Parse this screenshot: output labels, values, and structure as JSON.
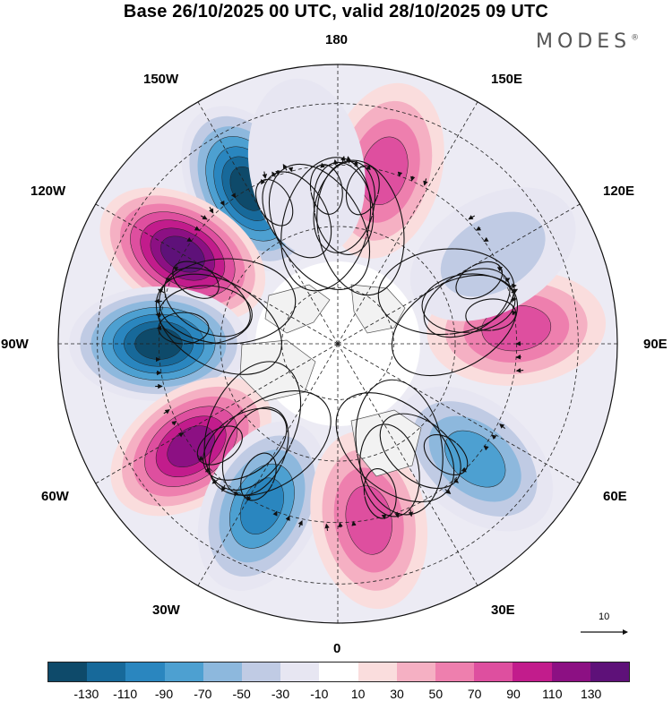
{
  "title": "Base 26/10/2025 00 UTC, valid 28/10/2025 09 UTC",
  "brand": "MODES",
  "brand_mark": "®",
  "longitude_labels": {
    "top": "180",
    "bottom": "0",
    "left": "90W",
    "right": "90E",
    "upper_left_1": "150W",
    "upper_left_2": "120W",
    "lower_left_2": "60W",
    "lower_left_1": "30W",
    "upper_right_1": "150E",
    "upper_right_2": "120E",
    "lower_right_2": "60E",
    "lower_right_1": "30E"
  },
  "reference_vector": {
    "label": "10",
    "icon": "arrow-right-icon"
  },
  "colorbar": {
    "colors": [
      "#0e4a6a",
      "#17699a",
      "#2a86bf",
      "#4da0d1",
      "#8db8dd",
      "#c0cbe4",
      "#e7e6f2",
      "#ffffff",
      "#fadddd",
      "#f5b0c3",
      "#ee7fae",
      "#de4f9f",
      "#c21c8c",
      "#8c1083",
      "#5e1179"
    ],
    "ticks": [
      "-130",
      "-110",
      "-90",
      "-70",
      "-50",
      "-30",
      "-10",
      "10",
      "30",
      "50",
      "70",
      "90",
      "110",
      "130"
    ]
  },
  "anomaly_centers": [
    {
      "lon": -150,
      "value": -140
    },
    {
      "lon": -120,
      "value": 135
    },
    {
      "lon": -90,
      "value": -140
    },
    {
      "lon": -55,
      "value": 125
    },
    {
      "lon": -25,
      "value": -95
    },
    {
      "lon": 10,
      "value": 75
    },
    {
      "lon": 50,
      "value": -70
    },
    {
      "lon": 95,
      "value": 75
    },
    {
      "lon": 120,
      "value": -40
    },
    {
      "lon": 165,
      "value": 80
    },
    {
      "lon": -170,
      "value": -20
    }
  ]
}
